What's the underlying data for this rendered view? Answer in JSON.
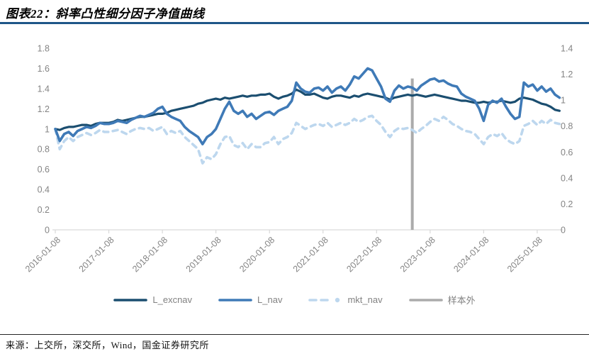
{
  "header": {
    "title": "图表22：斜率凸性细分因子净值曲线"
  },
  "footer": {
    "source": "来源：上交所，深交所，Wind，国金证券研究所"
  },
  "colors": {
    "title_rule": "#1F5688",
    "axis_text": "#848484",
    "axis_line": "#D9D9D9"
  },
  "chart_data": {
    "type": "line",
    "title": "斜率凸性细分因子净值曲线",
    "x_start": "2016-01-08",
    "x_step_months": 1,
    "x_tick_labels": [
      "2016-01-08",
      "2017-01-08",
      "2018-01-08",
      "2019-01-08",
      "2020-01-08",
      "2021-01-08",
      "2022-01-08",
      "2023-01-08",
      "2024-01-08",
      "2025-01-08"
    ],
    "left_axis": {
      "min": 0,
      "max": 1.8,
      "step": 0.2,
      "labels": [
        "0",
        "0.2",
        "0.4",
        "0.6",
        "0.8",
        "1",
        "1.2",
        "1.4",
        "1.6",
        "1.8"
      ]
    },
    "right_axis": {
      "min": 0,
      "max": 1.4,
      "step": 0.2,
      "labels": [
        "0",
        "0.2",
        "0.4",
        "0.6",
        "0.8",
        "1",
        "1.2",
        "1.4"
      ]
    },
    "grid": false,
    "legend_position": "bottom",
    "series": [
      {
        "name": "L_excnav",
        "color": "#1B4E70",
        "style": "solid",
        "width": 3.2,
        "z": 2,
        "values": [
          1.0,
          0.99,
          1.01,
          1.02,
          1.02,
          1.03,
          1.04,
          1.04,
          1.03,
          1.05,
          1.06,
          1.06,
          1.06,
          1.07,
          1.09,
          1.08,
          1.09,
          1.1,
          1.11,
          1.12,
          1.12,
          1.13,
          1.14,
          1.15,
          1.15,
          1.16,
          1.18,
          1.19,
          1.2,
          1.21,
          1.22,
          1.23,
          1.25,
          1.26,
          1.28,
          1.29,
          1.3,
          1.29,
          1.31,
          1.3,
          1.31,
          1.32,
          1.33,
          1.32,
          1.33,
          1.33,
          1.34,
          1.34,
          1.35,
          1.32,
          1.3,
          1.32,
          1.33,
          1.35,
          1.39,
          1.37,
          1.34,
          1.34,
          1.35,
          1.33,
          1.31,
          1.3,
          1.32,
          1.33,
          1.33,
          1.32,
          1.31,
          1.33,
          1.32,
          1.34,
          1.35,
          1.34,
          1.33,
          1.32,
          1.31,
          1.29,
          1.31,
          1.32,
          1.33,
          1.34,
          1.33,
          1.34,
          1.33,
          1.32,
          1.33,
          1.34,
          1.33,
          1.32,
          1.31,
          1.3,
          1.29,
          1.28,
          1.28,
          1.27,
          1.26,
          1.26,
          1.27,
          1.26,
          1.27,
          1.27,
          1.28,
          1.27,
          1.26,
          1.27,
          1.3,
          1.31,
          1.3,
          1.29,
          1.27,
          1.25,
          1.24,
          1.22,
          1.19,
          1.18
        ]
      },
      {
        "name": "L_nav",
        "color": "#3F7AB7",
        "style": "solid",
        "width": 3.6,
        "z": 3,
        "values": [
          1.0,
          0.88,
          0.95,
          0.97,
          0.93,
          0.98,
          1.0,
          1.02,
          1.01,
          1.03,
          1.06,
          1.05,
          1.05,
          1.06,
          1.08,
          1.07,
          1.06,
          1.09,
          1.11,
          1.13,
          1.12,
          1.14,
          1.16,
          1.2,
          1.22,
          1.15,
          1.12,
          1.1,
          1.08,
          1.02,
          0.98,
          0.95,
          0.92,
          0.85,
          0.92,
          0.95,
          1.0,
          1.1,
          1.2,
          1.27,
          1.18,
          1.15,
          1.18,
          1.12,
          1.15,
          1.1,
          1.13,
          1.16,
          1.17,
          1.14,
          1.18,
          1.2,
          1.22,
          1.28,
          1.46,
          1.4,
          1.37,
          1.36,
          1.4,
          1.41,
          1.38,
          1.42,
          1.36,
          1.4,
          1.42,
          1.38,
          1.44,
          1.52,
          1.5,
          1.55,
          1.6,
          1.58,
          1.5,
          1.42,
          1.3,
          1.27,
          1.38,
          1.43,
          1.4,
          1.42,
          1.41,
          1.38,
          1.43,
          1.46,
          1.49,
          1.5,
          1.47,
          1.48,
          1.45,
          1.43,
          1.42,
          1.35,
          1.32,
          1.3,
          1.28,
          1.2,
          1.08,
          1.24,
          1.28,
          1.26,
          1.3,
          1.22,
          1.15,
          1.1,
          1.12,
          1.46,
          1.42,
          1.44,
          1.38,
          1.42,
          1.37,
          1.4,
          1.34,
          1.31
        ]
      },
      {
        "name": "mkt_nav",
        "color": "#BDD7EE",
        "style": "dashed",
        "width": 3.6,
        "z": 1,
        "values": [
          1.0,
          0.8,
          0.88,
          0.92,
          0.88,
          0.92,
          0.94,
          0.96,
          0.94,
          0.96,
          0.99,
          0.97,
          0.97,
          0.98,
          0.99,
          0.97,
          0.95,
          0.98,
          1.0,
          1.01,
          1.0,
          1.01,
          0.98,
          1.0,
          1.02,
          0.95,
          0.98,
          0.96,
          0.98,
          0.92,
          0.88,
          0.84,
          0.8,
          0.66,
          0.72,
          0.7,
          0.75,
          0.85,
          0.92,
          0.93,
          0.84,
          0.82,
          0.86,
          0.8,
          0.85,
          0.82,
          0.82,
          0.86,
          0.87,
          0.92,
          0.85,
          0.9,
          0.92,
          0.96,
          1.06,
          1.03,
          1.0,
          1.02,
          1.04,
          1.05,
          1.03,
          1.06,
          1.02,
          1.04,
          1.06,
          1.04,
          1.06,
          1.1,
          1.07,
          1.09,
          1.12,
          1.13,
          1.08,
          1.04,
          0.97,
          0.92,
          0.98,
          1.01,
          1.0,
          1.01,
          0.99,
          0.96,
          1.0,
          1.03,
          1.07,
          1.1,
          1.08,
          1.12,
          1.09,
          1.05,
          1.03,
          1.0,
          0.98,
          0.97,
          0.95,
          0.9,
          0.85,
          0.92,
          0.95,
          0.93,
          0.96,
          0.9,
          0.87,
          0.85,
          0.88,
          1.03,
          1.05,
          1.08,
          1.04,
          1.08,
          1.05,
          1.09,
          1.06,
          1.05
        ]
      },
      {
        "name": "样本外",
        "color": "#ABABAB",
        "style": "vline",
        "width": 4,
        "z": 0,
        "x_date": "2022-09",
        "x_index": 80,
        "y_top": 1.5
      }
    ]
  }
}
